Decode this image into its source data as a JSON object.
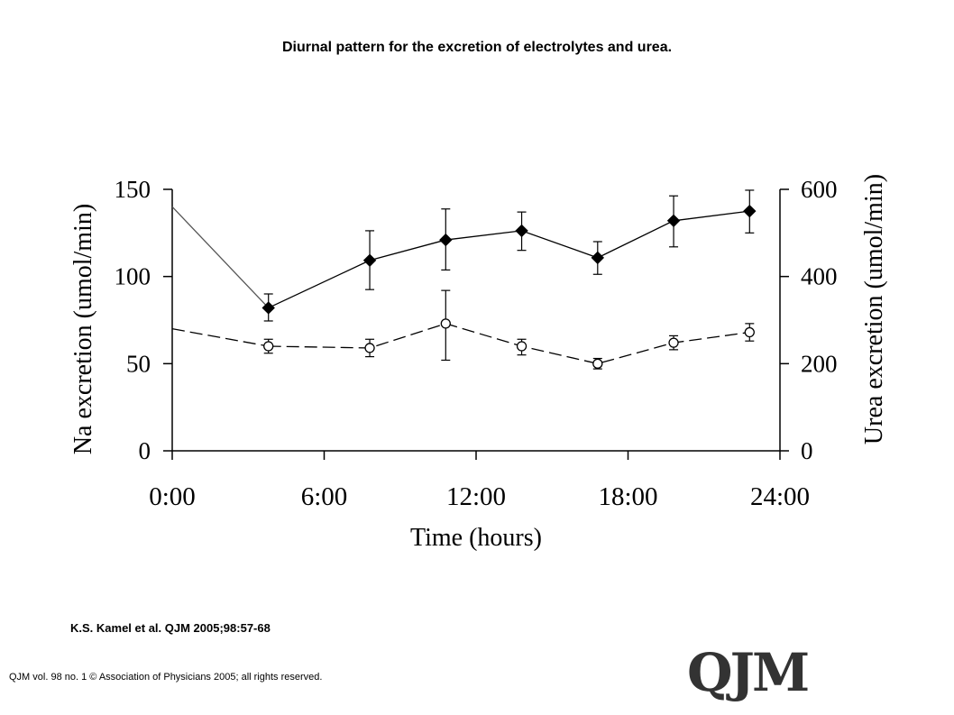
{
  "title": "Diurnal pattern for the excretion of electrolytes and urea.",
  "citation": "K.S. Kamel et al. QJM 2005;98:57-68",
  "copyright": "QJM vol. 98 no. 1 © Association of Physicians 2005; all rights reserved.",
  "logo_text": "QJM",
  "chart_data": {
    "type": "line",
    "xlabel": "Time (hours)",
    "ylabel_left": "Na excretion (umol/min)",
    "ylabel_right": "Urea excretion (umol/min)",
    "xlim": [
      0,
      24
    ],
    "ylim_left": [
      0,
      150
    ],
    "ylim_right": [
      0,
      600
    ],
    "x_ticks": [
      "0:00",
      "6:00",
      "12:00",
      "18:00",
      "24:00"
    ],
    "y_ticks_left": [
      "0",
      "50",
      "100",
      "150"
    ],
    "y_ticks_right": [
      "0",
      "200",
      "400",
      "600"
    ],
    "grid": false,
    "series": [
      {
        "axis": "right",
        "marker": "filled-diamond",
        "line": "solid",
        "color": "#000000",
        "lead_in": {
          "x": 0,
          "y": 560
        },
        "x": [
          3.8,
          7.8,
          10.8,
          13.8,
          16.8,
          19.8,
          22.8
        ],
        "values": [
          328,
          437,
          484,
          505,
          443,
          528,
          550
        ],
        "err_upper": [
          360,
          505,
          555,
          548,
          480,
          585,
          598
        ],
        "err_lower": [
          298,
          370,
          415,
          460,
          405,
          468,
          500
        ]
      },
      {
        "axis": "left",
        "marker": "open-circle",
        "line": "dashed",
        "color": "#000000",
        "lead_in": {
          "x": 0,
          "y": 70
        },
        "x": [
          3.8,
          7.8,
          10.8,
          13.8,
          16.8,
          19.8,
          22.8
        ],
        "values": [
          60,
          59,
          73,
          60,
          50,
          62,
          68
        ],
        "err_upper": [
          64,
          64,
          92,
          64,
          53,
          66,
          73
        ],
        "err_lower": [
          56,
          54,
          52,
          55,
          47,
          58,
          63
        ]
      }
    ]
  }
}
